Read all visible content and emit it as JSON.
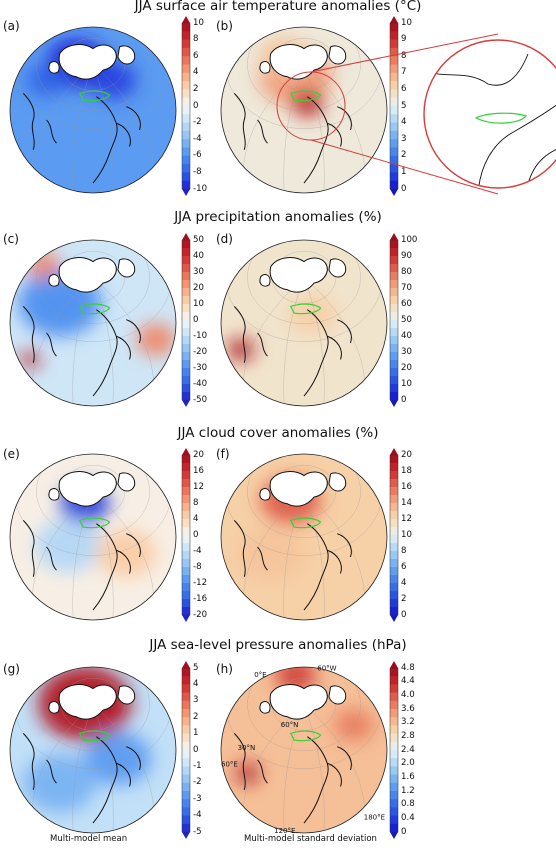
{
  "colors": {
    "anom_cmap": [
      "#1f1fd6",
      "#2e63e6",
      "#4d8ff0",
      "#86bdf3",
      "#c2e0f7",
      "#f6f6f6",
      "#fbd9b2",
      "#f7a47c",
      "#ea6550",
      "#cf2a2c",
      "#a80c1e"
    ],
    "std_cmap": [
      "#1414cc",
      "#2448e0",
      "#3c7ae9",
      "#6aa9ef",
      "#a7d4f4",
      "#e8f1f4",
      "#f7dcb3",
      "#f3ac84",
      "#e66d54",
      "#ca2a2c",
      "#a10b1d"
    ],
    "coast": "#111111",
    "region": "#35d035",
    "inset_circle": "#d93b3b"
  },
  "footer": {
    "left": "Multi-model mean",
    "right": "Multi-model standard deviation"
  },
  "chart_data": [
    {
      "type": "heatmap",
      "title": "JJA surface air temperature anomalies (°C)",
      "panels": [
        {
          "label": "(a)",
          "field": "Multi-model mean",
          "colorbar": {
            "ticks": [
              "10",
              "8",
              "6",
              "4",
              "2",
              "0",
              "-2",
              "-4",
              "-6",
              "-8",
              "-10"
            ],
            "range": [
              -10,
              10
            ]
          },
          "pattern": {
            "dominant": -0.55,
            "blobs": [
              [
                0.4,
                0.22,
                0.18,
                -1.0
              ],
              [
                0.62,
                0.32,
                0.14,
                -0.9
              ],
              [
                0.22,
                0.32,
                0.12,
                -0.8
              ]
            ]
          }
        },
        {
          "label": "(b)",
          "field": "Multi-model standard deviation",
          "colorbar": {
            "ticks": [
              "10",
              "9",
              "8",
              "7",
              "6",
              "5",
              "4",
              "3",
              "2",
              "1",
              "0"
            ],
            "range": [
              0,
              10
            ]
          },
          "pattern": {
            "dominant": 0.08,
            "blobs": [
              [
                0.45,
                0.3,
                0.22,
                0.45
              ],
              [
                0.52,
                0.46,
                0.1,
                0.85
              ],
              [
                0.38,
                0.18,
                0.15,
                0.3
              ]
            ]
          }
        }
      ]
    },
    {
      "type": "heatmap",
      "title": "JJA precipitation anomalies (%)",
      "panels": [
        {
          "label": "(c)",
          "field": "Multi-model mean",
          "colorbar": {
            "ticks": [
              "50",
              "40",
              "30",
              "20",
              "10",
              "0",
              "-10",
              "-20",
              "-30",
              "-40",
              "-50"
            ],
            "range": [
              -50,
              50
            ]
          },
          "pattern": {
            "dominant": -0.15,
            "blobs": [
              [
                0.3,
                0.38,
                0.25,
                -0.6
              ],
              [
                0.12,
                0.72,
                0.06,
                0.9
              ],
              [
                0.88,
                0.6,
                0.12,
                0.5
              ],
              [
                0.2,
                0.15,
                0.1,
                0.5
              ]
            ]
          }
        },
        {
          "label": "(d)",
          "field": "Multi-model standard deviation",
          "colorbar": {
            "ticks": [
              "100",
              "90",
              "80",
              "70",
              "60",
              "50",
              "40",
              "30",
              "20",
              "10",
              "0"
            ],
            "range": [
              0,
              100
            ]
          },
          "pattern": {
            "dominant": 0.12,
            "blobs": [
              [
                0.12,
                0.66,
                0.08,
                0.95
              ],
              [
                0.55,
                0.45,
                0.15,
                0.25
              ]
            ]
          }
        }
      ]
    },
    {
      "type": "heatmap",
      "title": "JJA cloud cover anomalies (%)",
      "panels": [
        {
          "label": "(e)",
          "field": "Multi-model mean",
          "colorbar": {
            "ticks": [
              "20",
              "16",
              "12",
              "8",
              "4",
              "0",
              "-4",
              "-8",
              "-12",
              "-16",
              "-20"
            ],
            "range": [
              -20,
              20
            ]
          },
          "pattern": {
            "dominant": 0.05,
            "blobs": [
              [
                0.45,
                0.3,
                0.15,
                -0.9
              ],
              [
                0.35,
                0.55,
                0.2,
                -0.25
              ],
              [
                0.7,
                0.6,
                0.18,
                0.25
              ]
            ]
          }
        },
        {
          "label": "(f)",
          "field": "Multi-model standard deviation",
          "colorbar": {
            "ticks": [
              "20",
              "18",
              "16",
              "14",
              "12",
              "10",
              "8",
              "6",
              "4",
              "2",
              "0"
            ],
            "range": [
              0,
              20
            ]
          },
          "pattern": {
            "dominant": 0.25,
            "blobs": [
              [
                0.42,
                0.28,
                0.18,
                0.65
              ],
              [
                0.3,
                0.6,
                0.2,
                0.3
              ]
            ]
          }
        }
      ]
    },
    {
      "type": "heatmap",
      "title": "JJA sea-level pressure anomalies (hPa)",
      "panels": [
        {
          "label": "(g)",
          "field": "Multi-model mean",
          "colorbar": {
            "ticks": [
              "5",
              "4",
              "3",
              "2",
              "1",
              "0",
              "-1",
              "-2",
              "-3",
              "-4",
              "-5"
            ],
            "range": [
              -5,
              5
            ]
          },
          "pattern": {
            "dominant": -0.2,
            "blobs": [
              [
                0.45,
                0.22,
                0.28,
                0.95
              ],
              [
                0.65,
                0.55,
                0.2,
                -0.55
              ],
              [
                0.3,
                0.7,
                0.22,
                -0.45
              ]
            ]
          }
        },
        {
          "label": "(h)",
          "field": "Multi-model standard deviation",
          "colorbar": {
            "ticks": [
              "4.8",
              "4.4",
              "4.0",
              "3.6",
              "3.2",
              "2.8",
              "2.4",
              "2.0",
              "1.6",
              "1.2",
              "0.8",
              "0.4",
              "0"
            ],
            "range": [
              0,
              4.8
            ]
          },
          "pattern": {
            "dominant": 0.32,
            "blobs": [
              [
                0.16,
                0.64,
                0.07,
                0.95
              ],
              [
                0.45,
                0.05,
                0.12,
                0.75
              ],
              [
                0.8,
                0.35,
                0.12,
                0.55
              ]
            ]
          },
          "coords": [
            "0°E",
            "60°W",
            "60°N",
            "30°N",
            "60°E",
            "180°E",
            "120°E"
          ]
        }
      ]
    }
  ]
}
